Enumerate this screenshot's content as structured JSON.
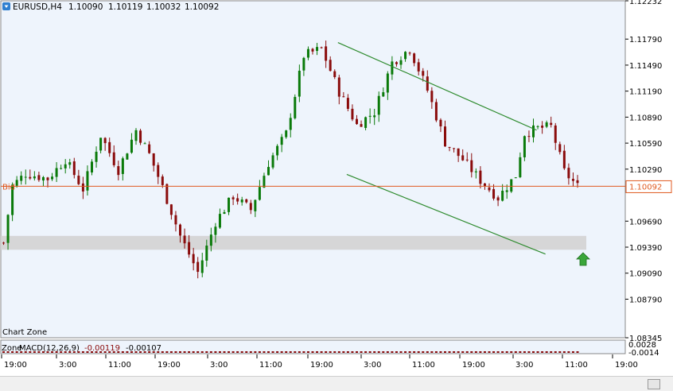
{
  "header": {
    "symbol": "EURUSD,H4",
    "open": "1.10090",
    "high": "1.10119",
    "low": "1.10032",
    "close": "1.10092"
  },
  "bid": {
    "label": "Bid",
    "price": "1.10092",
    "value": 1.10092
  },
  "main_zone_label": "Chart Zone",
  "indicator": {
    "zone_label": "Zone",
    "name": "MACD(12,26,9)",
    "macd": "-0.00119",
    "signal": "-0.00107",
    "axis_top": "0.0028",
    "axis_bottom": "-0.0014"
  },
  "colors": {
    "background": "#ffffff",
    "plot_bg": "#eef4fc",
    "bull": "#0a7a0a",
    "bear": "#8a0c0c",
    "bid_line": "#e05a20",
    "channel": "#2e8b2e",
    "zone": "#d3d3d3",
    "arrow": "#3aa63a"
  },
  "chart_data": {
    "type": "candlestick",
    "symbol": "EURUSD",
    "timeframe": "H4",
    "y_ticks": [
      "1.12232",
      "1.11790",
      "1.11490",
      "1.11190",
      "1.10890",
      "1.10590",
      "1.10290",
      "1.10092",
      "1.09690",
      "1.09390",
      "1.09090",
      "1.08790",
      "1.08345"
    ],
    "ylim": [
      1.08345,
      1.12232
    ],
    "x_ticks": [
      "19:00",
      "3:00",
      "11:00",
      "19:00",
      "3:00",
      "11:00",
      "19:00",
      "3:00",
      "11:00",
      "19:00",
      "3:00",
      "11:00",
      "19:00"
    ],
    "price_path": [
      [
        0,
        1.0944
      ],
      [
        2,
        1.101
      ],
      [
        5,
        1.1024
      ],
      [
        10,
        1.1018
      ],
      [
        14,
        1.104
      ],
      [
        18,
        1.1006
      ],
      [
        22,
        1.1068
      ],
      [
        26,
        1.1028
      ],
      [
        30,
        1.1074
      ],
      [
        33,
        1.1046
      ],
      [
        36,
        1.1008
      ],
      [
        40,
        1.0952
      ],
      [
        44,
        1.091
      ],
      [
        48,
        1.0968
      ],
      [
        52,
        1.0998
      ],
      [
        56,
        1.0982
      ],
      [
        60,
        1.1036
      ],
      [
        64,
        1.107
      ],
      [
        68,
        1.116
      ],
      [
        72,
        1.1168
      ],
      [
        76,
        1.1118
      ],
      [
        80,
        1.108
      ],
      [
        84,
        1.1095
      ],
      [
        88,
        1.1152
      ],
      [
        92,
        1.1168
      ],
      [
        96,
        1.112
      ],
      [
        100,
        1.106
      ],
      [
        104,
        1.104
      ],
      [
        108,
        1.1016
      ],
      [
        112,
        1.0996
      ],
      [
        116,
        1.1022
      ],
      [
        118,
        1.107
      ],
      [
        121,
        1.1076
      ],
      [
        124,
        1.1078
      ],
      [
        127,
        1.1026
      ],
      [
        130,
        1.1009
      ]
    ],
    "support_resistance_zone": [
      1.0936,
      1.0952
    ],
    "channel_upper": [
      [
        1.1175,
        76
      ],
      [
        1.1074,
        121
      ]
    ],
    "channel_lower": [
      [
        1.1023,
        78
      ],
      [
        1.0931,
        123
      ]
    ],
    "bid": 1.10092,
    "annotations": [
      "Bid",
      "Chart Zone"
    ]
  }
}
